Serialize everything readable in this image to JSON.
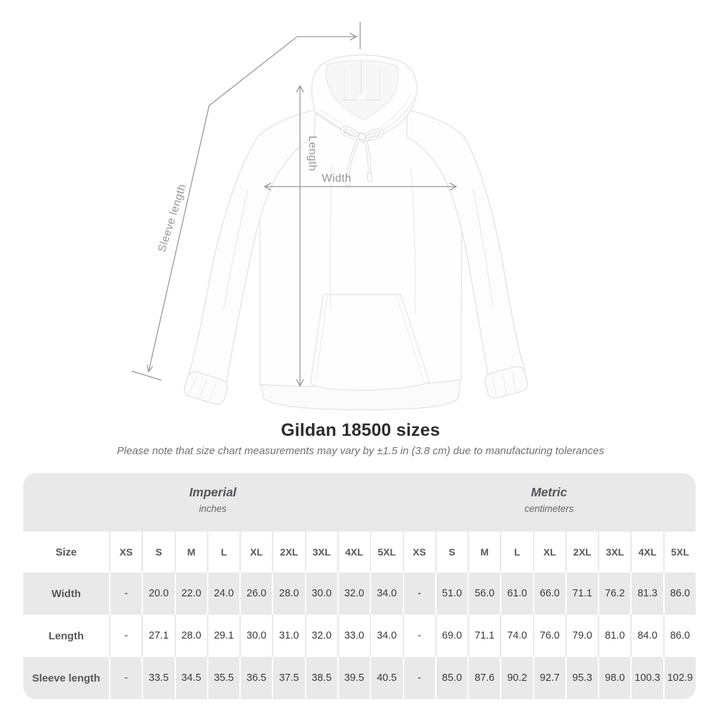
{
  "diagram": {
    "labels": {
      "sleeve_length": "Sleeve length",
      "length": "Length",
      "width": "Width"
    }
  },
  "heading": {
    "title": "Gildan 18500 sizes",
    "subtitle": "Please note that size chart measurements may vary by ±1.5 in (3.8 cm) due to manufacturing tolerances"
  },
  "chart_data": {
    "type": "table",
    "title": "Gildan 18500 sizes",
    "subtitle": "Please note that size chart measurements may vary by ±1.5 in (3.8 cm) due to manufacturing tolerances",
    "size_label": "Size",
    "groups": [
      {
        "name": "Imperial",
        "unit": "inches"
      },
      {
        "name": "Metric",
        "unit": "centimeters"
      }
    ],
    "sizes": [
      "XS",
      "S",
      "M",
      "L",
      "XL",
      "2XL",
      "3XL",
      "4XL",
      "5XL"
    ],
    "rows": [
      {
        "label": "Width",
        "imperial": [
          "-",
          "20.0",
          "22.0",
          "24.0",
          "26.0",
          "28.0",
          "30.0",
          "32.0",
          "34.0"
        ],
        "metric": [
          "-",
          "51.0",
          "56.0",
          "61.0",
          "66.0",
          "71.1",
          "76.2",
          "81.3",
          "86.0"
        ]
      },
      {
        "label": "Length",
        "imperial": [
          "-",
          "27.1",
          "28.0",
          "29.1",
          "30.0",
          "31.0",
          "32.0",
          "33.0",
          "34.0"
        ],
        "metric": [
          "-",
          "69.0",
          "71.1",
          "74.0",
          "76.0",
          "79.0",
          "81.0",
          "84.0",
          "86.0"
        ]
      },
      {
        "label": "Sleeve length",
        "imperial": [
          "-",
          "33.5",
          "34.5",
          "35.5",
          "36.5",
          "37.5",
          "38.5",
          "39.5",
          "40.5"
        ],
        "metric": [
          "-",
          "85.0",
          "87.6",
          "90.2",
          "92.7",
          "95.3",
          "98.0",
          "100.3",
          "102.9"
        ]
      }
    ]
  },
  "colors": {
    "table_stripe": "#e9e9e9",
    "measure_line": "#97979a",
    "value_text": "#3a3a3c",
    "header_text": "#58585b",
    "title_text": "#2c2c2e"
  }
}
